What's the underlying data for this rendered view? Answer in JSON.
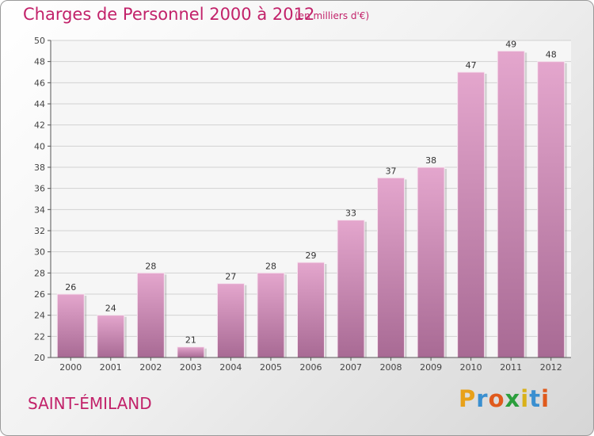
{
  "title": "Charges de Personnel 2000 à 2012",
  "subtitle": "(en milliers d'€)",
  "location": "SAINT-ÉMILAND",
  "brand": {
    "letters": [
      "P",
      "r",
      "o",
      "x",
      "i",
      "t",
      "i"
    ],
    "colors": [
      "#e8a11a",
      "#3a8fd0",
      "#e05a1c",
      "#2b9e3c",
      "#d9b11a",
      "#3a8fd0",
      "#e05a1c"
    ]
  },
  "chart_data": {
    "type": "bar",
    "title": "Charges de Personnel 2000 à 2012",
    "subtitle": "(en milliers d'€)",
    "categories": [
      "2000",
      "2001",
      "2002",
      "2003",
      "2004",
      "2005",
      "2006",
      "2007",
      "2008",
      "2009",
      "2010",
      "2011",
      "2012"
    ],
    "values": [
      26,
      24,
      28,
      21,
      27,
      28,
      29,
      33,
      37,
      38,
      47,
      49,
      48
    ],
    "ylim": [
      20,
      50
    ],
    "yticks": [
      20,
      22,
      24,
      26,
      28,
      30,
      32,
      34,
      36,
      38,
      40,
      42,
      44,
      46,
      48,
      50
    ],
    "grid": true,
    "bar_color": "#d88fbc",
    "bar_color_dark": "#b0709a"
  }
}
